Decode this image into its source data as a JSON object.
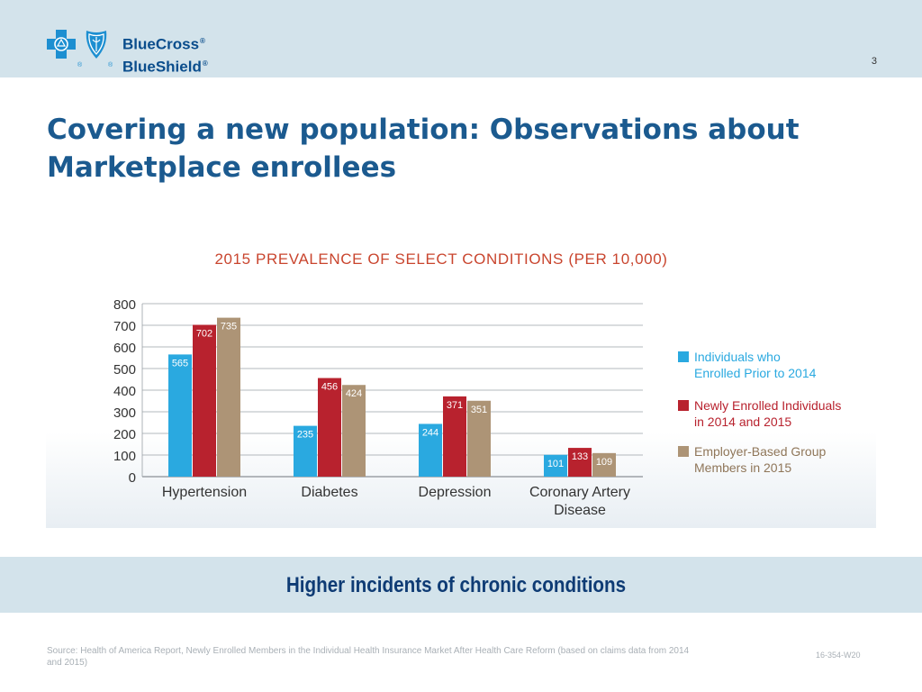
{
  "header": {
    "brand_line1": "BlueCross",
    "brand_line2": "BlueShield",
    "registered_mark": "®",
    "slide_number": "3"
  },
  "title": "Covering a new population: Observations about Marketplace enrollees",
  "callout": "Higher incidents of chronic conditions",
  "footer": {
    "source": "Source: Health of America Report, Newly Enrolled Members in the Individual Health Insurance Market After Health Care Reform  (based on claims data from 2014 and 2015)",
    "doc_id": "16-354-W20"
  },
  "colors": {
    "brand_blue": "#0a4d8c",
    "title_blue": "#1b5a8f",
    "band": "#d3e3eb"
  },
  "chart_data": {
    "type": "bar",
    "title": "2015 PREVALENCE OF SELECT CONDITIONS (PER 10,000)",
    "categories": [
      [
        "Hypertension"
      ],
      [
        "Diabetes"
      ],
      [
        "Depression"
      ],
      [
        "Coronary Artery",
        "Disease"
      ]
    ],
    "series": [
      {
        "name": [
          "Individuals who",
          "Enrolled Prior to 2014"
        ],
        "color": "#2aa9e0",
        "values": [
          565,
          235,
          244,
          101
        ]
      },
      {
        "name": [
          "Newly Enrolled Individuals",
          "in 2014 and 2015"
        ],
        "color": "#b8222e",
        "values": [
          702,
          456,
          371,
          133
        ]
      },
      {
        "name": [
          "Employer-Based Group",
          "Members in 2015"
        ],
        "color": "#ad9476",
        "values": [
          735,
          424,
          351,
          109
        ]
      }
    ],
    "y_ticks": [
      0,
      100,
      200,
      300,
      400,
      500,
      600,
      700,
      800
    ],
    "ylim": [
      0,
      800
    ],
    "grid": true,
    "legend": "right"
  }
}
